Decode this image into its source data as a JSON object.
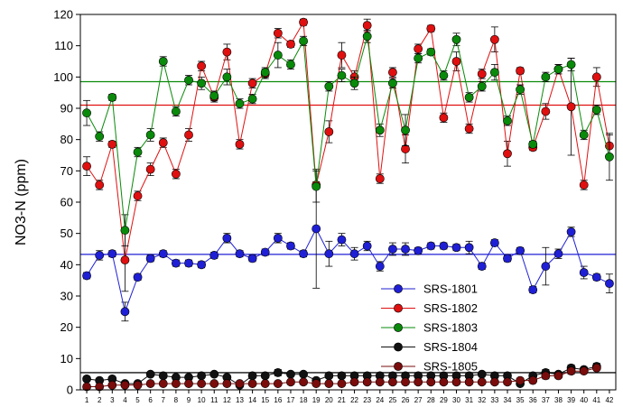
{
  "chart_data": {
    "type": "scatter",
    "ylabel": "NO3-N (ppm)",
    "xlabel": "",
    "xlim": [
      0.5,
      42.5
    ],
    "ylim": [
      0,
      120
    ],
    "yticks": [
      0,
      10,
      20,
      30,
      40,
      50,
      60,
      70,
      80,
      90,
      100,
      110,
      120
    ],
    "x": [
      1,
      2,
      3,
      4,
      5,
      6,
      7,
      8,
      9,
      10,
      11,
      12,
      13,
      14,
      15,
      16,
      17,
      18,
      19,
      20,
      21,
      22,
      23,
      24,
      25,
      26,
      27,
      28,
      29,
      30,
      31,
      32,
      33,
      34,
      35,
      36,
      37,
      38,
      39,
      40,
      41,
      42
    ],
    "legend_position": "lower-right",
    "series": [
      {
        "name": "SRS-1801",
        "color": "#1f1fd6",
        "values": [
          36.5,
          43,
          43.5,
          25,
          36,
          42,
          43.5,
          40.5,
          40.5,
          40,
          43,
          48.5,
          43.5,
          42,
          44,
          48.5,
          46,
          43.5,
          51.5,
          43.5,
          48,
          43.5,
          46,
          39.5,
          45,
          45,
          44.5,
          46,
          46,
          45.5,
          45.5,
          39.5,
          47,
          42,
          44.5,
          32,
          39.5,
          43.5,
          50.5,
          37.5,
          36,
          34
        ],
        "errors": [
          1,
          1.5,
          1,
          3,
          1,
          1,
          1,
          1,
          1,
          1,
          1,
          1.5,
          1,
          1,
          1,
          1.5,
          1,
          1,
          19,
          4,
          2,
          2,
          1.5,
          1.5,
          2,
          2,
          1,
          1,
          1,
          1,
          2,
          1,
          1,
          1,
          1,
          1,
          6,
          1.5,
          1.5,
          2,
          1,
          3
        ],
        "mean_line": 43.3
      },
      {
        "name": "SRS-1802",
        "color": "#e01010",
        "values": [
          71.5,
          65.5,
          78.5,
          41.5,
          62,
          70.5,
          79,
          69,
          81.5,
          103.5,
          93.5,
          108,
          78.5,
          98,
          101,
          114,
          110.5,
          117.5,
          65.5,
          82.5,
          107,
          100,
          116.5,
          67.5,
          101.5,
          77,
          109,
          115.5,
          87,
          105,
          83.5,
          101,
          112,
          75.5,
          102,
          77.5,
          89,
          102.5,
          90.5,
          65.5,
          100,
          78
        ],
        "errors": [
          3,
          1.5,
          1,
          10,
          1.5,
          2,
          1.5,
          1.5,
          2,
          1.5,
          1.5,
          2.5,
          1.5,
          1.5,
          1.5,
          1.5,
          1,
          1,
          1,
          3.5,
          4,
          2,
          2,
          1.5,
          1.5,
          4.5,
          1.5,
          1,
          1.5,
          3,
          1.5,
          1.5,
          4,
          4,
          1,
          1,
          2.5,
          1.5,
          15.5,
          1.5,
          3,
          3.5
        ],
        "mean_line": 91
      },
      {
        "name": "SRS-1803",
        "color": "#0a8a0a",
        "values": [
          88.5,
          81,
          93.5,
          51,
          76,
          81.5,
          105,
          89,
          99,
          98,
          94,
          100,
          91.5,
          93,
          101.5,
          107,
          104,
          111.5,
          65,
          97,
          100.5,
          98,
          113,
          83,
          98,
          83,
          106,
          108,
          100.5,
          112,
          93.5,
          97,
          101.5,
          86,
          96,
          78.5,
          100,
          102.5,
          104,
          81.5,
          89.5,
          74.5
        ],
        "errors": [
          4,
          1.5,
          1,
          5,
          1.5,
          2,
          1.5,
          1.5,
          1.5,
          2,
          1.5,
          2.5,
          1.5,
          1.5,
          1.5,
          4,
          1.5,
          1.5,
          5,
          1.5,
          2,
          2,
          2,
          2,
          1.5,
          5,
          1.5,
          1,
          1.5,
          2,
          1.5,
          1.5,
          2.5,
          1.5,
          1.5,
          1,
          1.5,
          1.5,
          2,
          1.5,
          1.5,
          7.5
        ],
        "mean_line": 98.5
      },
      {
        "name": "SRS-1804",
        "color": "#111111",
        "values": [
          3.5,
          3,
          3.5,
          2,
          2,
          5,
          4.5,
          4,
          4,
          4.5,
          5,
          4,
          1.5,
          4.5,
          4.5,
          5.5,
          5,
          5,
          3,
          4.5,
          4.5,
          4.5,
          4.5,
          4.5,
          4.5,
          4.5,
          4.5,
          4.5,
          4.5,
          4.5,
          4.5,
          5,
          4.5,
          4.5,
          2,
          4.5,
          5.5,
          5,
          7,
          6.5,
          7.5,
          null
        ],
        "errors": [
          0.5,
          0.5,
          0.5,
          0.5,
          0.5,
          0.5,
          0.5,
          0.5,
          0.5,
          0.5,
          0.5,
          0.5,
          0.5,
          0.5,
          0.5,
          1,
          0.5,
          0.5,
          0.5,
          0.5,
          0.5,
          0.5,
          0.5,
          0.5,
          0.5,
          0.5,
          0.5,
          0.5,
          0.5,
          0.5,
          0.5,
          0.5,
          0.5,
          0.5,
          0.5,
          0.5,
          1,
          0.5,
          1,
          0.5,
          1,
          0
        ],
        "mean_line": 5.5
      },
      {
        "name": "SRS-1805",
        "color": "#7a0c0c",
        "values": [
          1,
          1,
          1.5,
          1.5,
          1.5,
          2,
          2,
          2,
          2,
          2,
          2,
          2,
          2,
          2,
          2,
          2,
          2.5,
          2.5,
          2,
          2,
          2,
          2.5,
          2.5,
          2.5,
          2.5,
          2.5,
          2.5,
          2.5,
          2.5,
          2.5,
          2.5,
          2.5,
          2.5,
          2.5,
          3,
          3,
          4.5,
          4.5,
          6,
          6,
          7,
          null
        ],
        "errors": [
          0.5,
          0.5,
          0.5,
          0.5,
          0.5,
          0.5,
          0.5,
          0.5,
          0.5,
          0.5,
          0.5,
          0.5,
          0.5,
          0.5,
          0.5,
          0.5,
          0.5,
          0.5,
          0.5,
          0.5,
          0.5,
          0.5,
          0.5,
          0.5,
          0.5,
          0.5,
          0.5,
          0.5,
          0.5,
          0.5,
          0.5,
          0.5,
          0.5,
          0.5,
          0.5,
          0.5,
          1,
          0.5,
          1,
          0.5,
          0.5,
          0
        ],
        "mean_line": null
      }
    ]
  }
}
